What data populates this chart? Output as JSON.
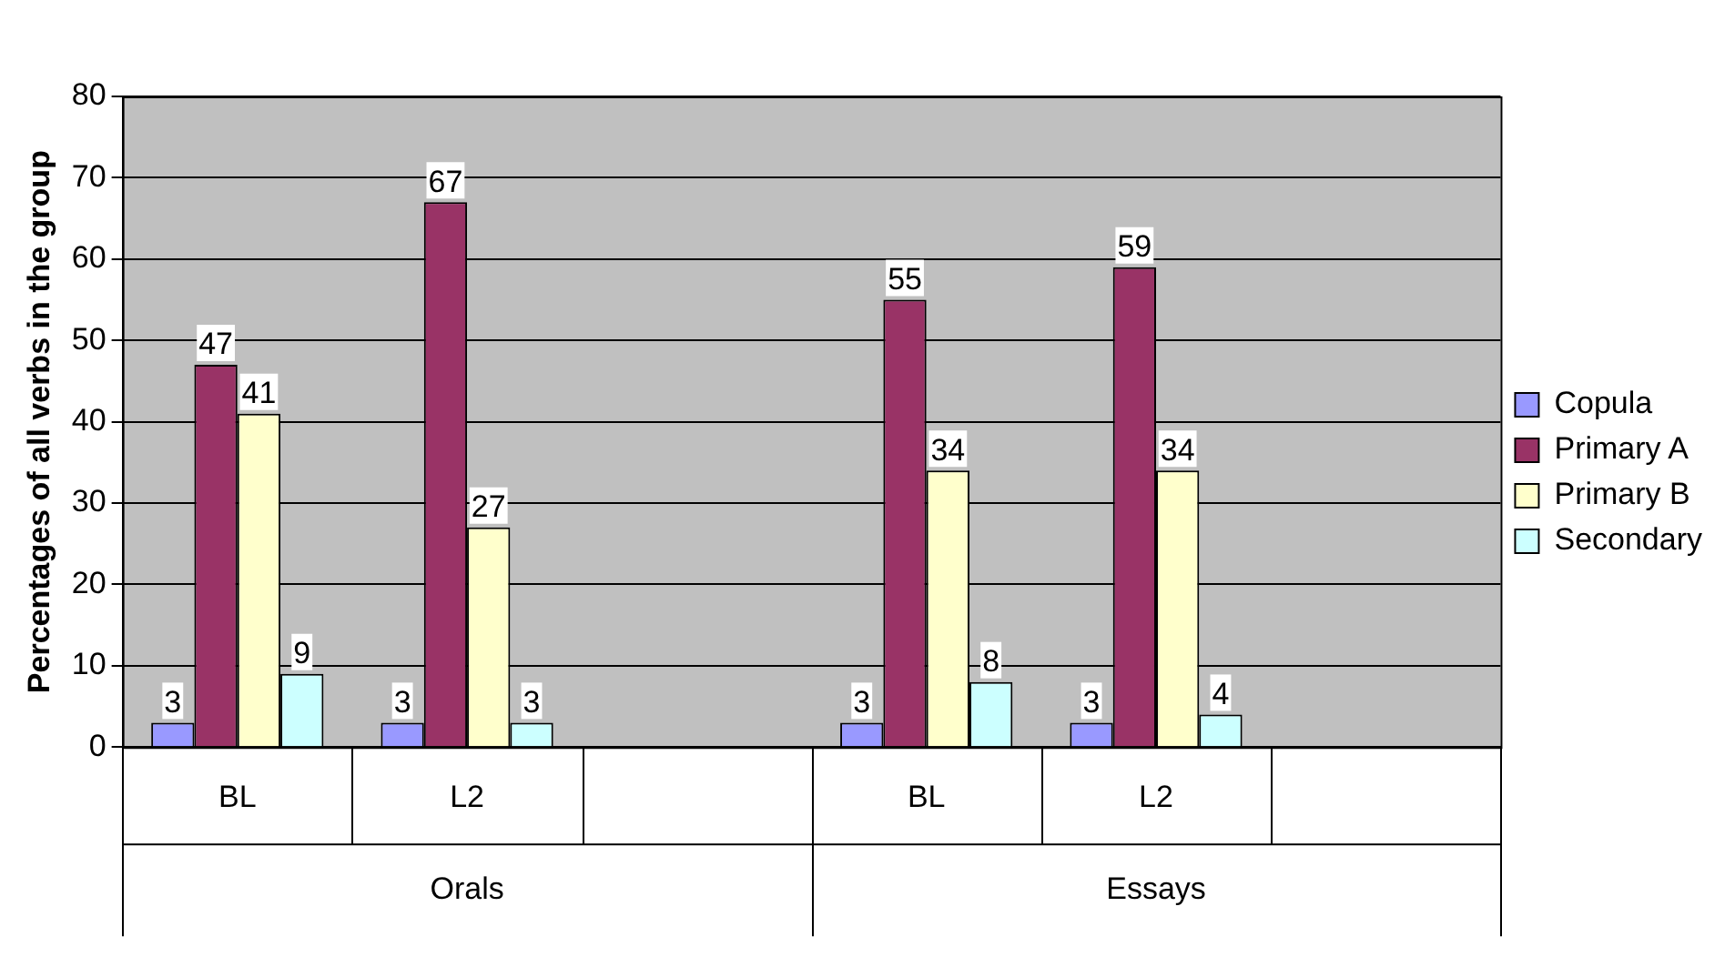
{
  "chart_data": {
    "type": "bar",
    "ylabel": "Percentages of all verbs in the group",
    "categories": [
      "BL",
      "L2",
      null,
      "BL",
      "L2",
      null
    ],
    "annotations": [
      "Orals",
      "Essays"
    ],
    "series": [
      {
        "name": "Copula",
        "color": "#9999ff",
        "values": [
          3,
          3,
          null,
          3,
          3,
          null
        ]
      },
      {
        "name": "Primary A",
        "color": "#993366",
        "values": [
          47,
          67,
          null,
          55,
          59,
          null
        ]
      },
      {
        "name": "Primary B",
        "color": "#ffffcc",
        "values": [
          41,
          27,
          null,
          34,
          34,
          null
        ]
      },
      {
        "name": "Secondary",
        "color": "#ccffff",
        "values": [
          9,
          3,
          null,
          8,
          4,
          null
        ]
      }
    ],
    "ylim": [
      0,
      80
    ],
    "yticks": [
      0,
      10,
      20,
      30,
      40,
      50,
      60,
      70,
      80
    ],
    "grid": "y",
    "legend": "right",
    "data_labels": true
  }
}
